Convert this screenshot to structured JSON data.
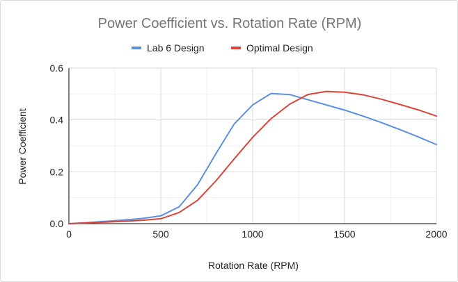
{
  "chart_data": {
    "type": "line",
    "title": "Power Coefficient vs. Rotation Rate (RPM)",
    "xlabel": "Rotation Rate (RPM)",
    "ylabel": "Power Coefficient",
    "xlim": [
      0,
      2000
    ],
    "ylim": [
      0,
      0.6
    ],
    "xticks": [
      "0",
      "500",
      "1000",
      "1500",
      "2000"
    ],
    "yticks": [
      "0.0",
      "0.2",
      "0.4",
      "0.6"
    ],
    "x_tick_values": [
      0,
      500,
      1000,
      1500,
      2000
    ],
    "y_tick_values": [
      0,
      0.2,
      0.4,
      0.6
    ],
    "x_minor_grid_values": [
      250,
      750,
      1250,
      1750
    ],
    "y_minor_grid_values": [
      0.1,
      0.3,
      0.5
    ],
    "grid": true,
    "legend_position": "top",
    "series": [
      {
        "name": "Lab 6 Design",
        "color": "#5b8fe0",
        "x": [
          0,
          100,
          200,
          300,
          400,
          500,
          600,
          700,
          800,
          900,
          1000,
          1100,
          1200,
          1300,
          1400,
          1500,
          1600,
          1700,
          1800,
          1900,
          2000
        ],
        "y": [
          0.0,
          0.004,
          0.009,
          0.014,
          0.02,
          0.03,
          0.065,
          0.15,
          0.27,
          0.385,
          0.458,
          0.502,
          0.498,
          0.478,
          0.458,
          0.438,
          0.415,
          0.39,
          0.363,
          0.335,
          0.305
        ]
      },
      {
        "name": "Optimal Design",
        "color": "#db4437",
        "x": [
          0,
          100,
          200,
          300,
          400,
          500,
          600,
          700,
          800,
          900,
          1000,
          1100,
          1200,
          1300,
          1400,
          1500,
          1600,
          1700,
          1800,
          1900,
          2000
        ],
        "y": [
          0.0,
          0.003,
          0.006,
          0.009,
          0.013,
          0.019,
          0.043,
          0.09,
          0.165,
          0.25,
          0.333,
          0.405,
          0.46,
          0.498,
          0.51,
          0.507,
          0.497,
          0.48,
          0.46,
          0.439,
          0.415
        ]
      }
    ]
  }
}
